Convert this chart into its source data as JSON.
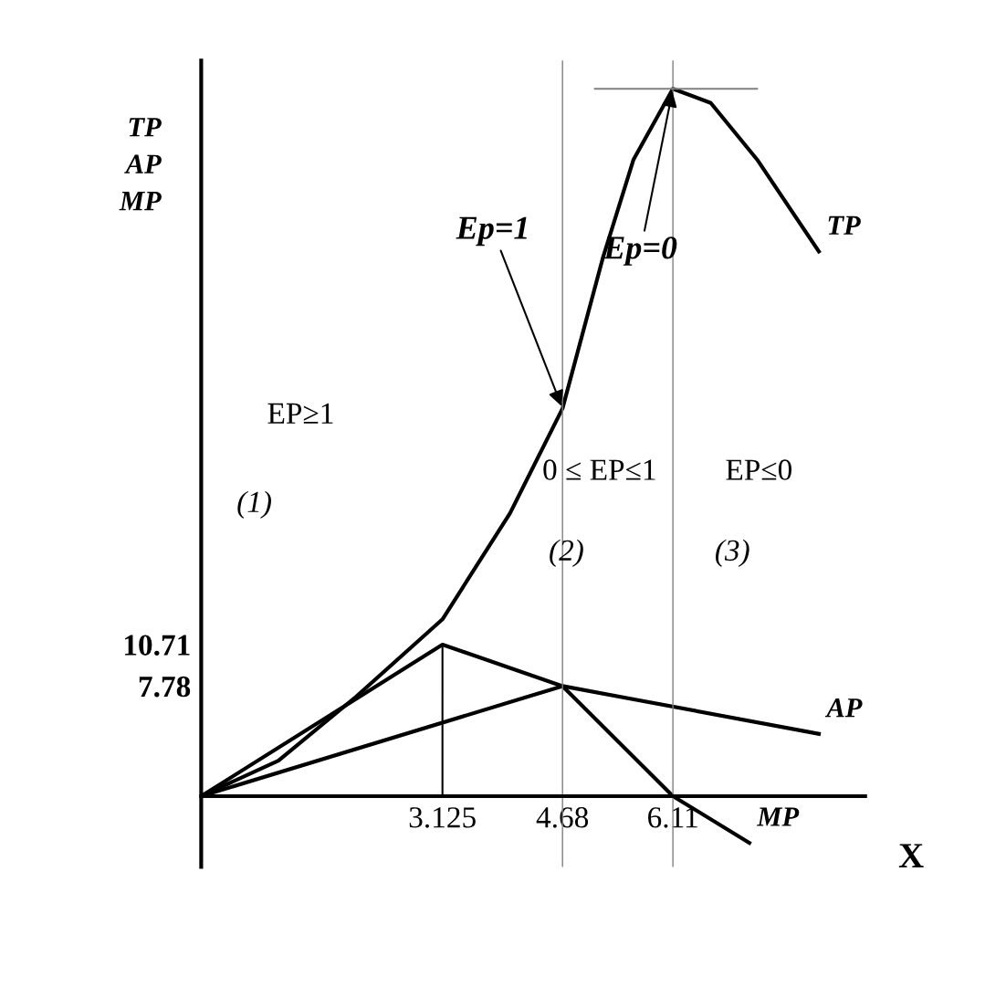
{
  "chart_data": {
    "type": "line",
    "ylabel": "TP\nAP\nMP",
    "xlabel": "X",
    "xlim": [
      0,
      8.6
    ],
    "ylim": [
      -5,
      52
    ],
    "xticks": [
      3.125,
      4.68,
      6.11
    ],
    "yticks": [
      10.71,
      7.78
    ],
    "series": [
      {
        "name": "TP",
        "color": "#000000",
        "x": [
          0,
          1,
          2,
          3.125,
          4,
          4.68,
          5.2,
          5.6,
          6.11,
          6.6,
          7.2,
          8
        ],
        "values": [
          0,
          2.5,
          7,
          12.5,
          20,
          27.4,
          38,
          45,
          50,
          49,
          45,
          38.5
        ]
      },
      {
        "name": "AP",
        "color": "#000000",
        "x": [
          0,
          4.68,
          8
        ],
        "values": [
          0,
          7.78,
          4.4
        ]
      },
      {
        "name": "MP",
        "color": "#000000",
        "x": [
          0,
          3.125,
          4.68,
          6.11,
          7.1
        ],
        "values": [
          0,
          10.71,
          7.78,
          0,
          -3.3
        ]
      },
      {
        "color": "#000000",
        "x": [
          3.125,
          3.125
        ],
        "values": [
          0,
          10.71
        ]
      },
      {
        "color": "#808080",
        "x": [
          5.1,
          7.2
        ],
        "values": [
          50,
          50
        ]
      }
    ],
    "ref_lines": [
      {
        "axis": "x",
        "value": 4.68,
        "color": "#808080"
      },
      {
        "axis": "x",
        "value": 6.11,
        "color": "#808080"
      }
    ],
    "annotations": [
      {
        "text": "Ep=1",
        "x": 4.68,
        "y": 27.4
      },
      {
        "text": "Ep=0",
        "x": 6.11,
        "y": 50
      },
      "EP≥1",
      "(1)",
      "0 ≤ EP≤1",
      "(2)",
      "EP≤0",
      "(3)"
    ],
    "grid": false,
    "legend": false
  }
}
